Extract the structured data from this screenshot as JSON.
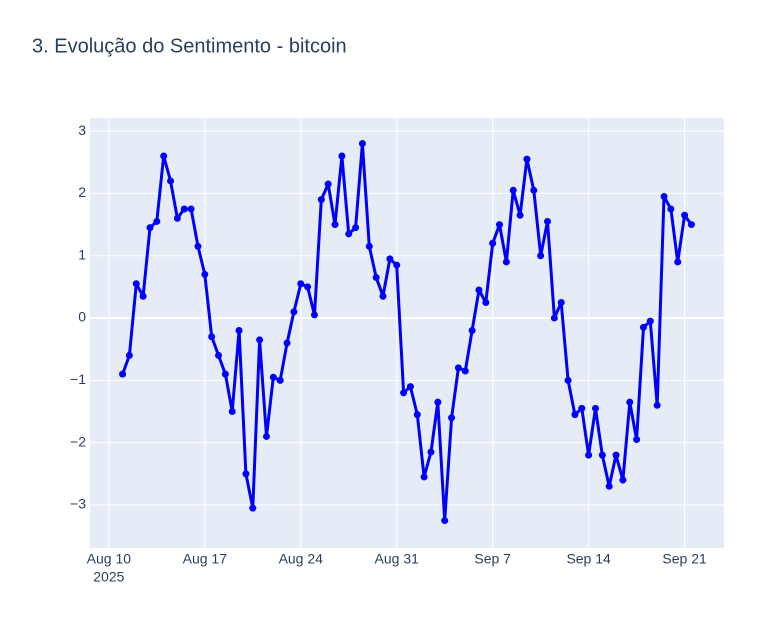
{
  "chart_data": {
    "type": "line",
    "title": "3. Evolução do Sentimento - bitcoin",
    "color": "#0000ff",
    "grid": true,
    "x": [
      "2025-08-11 00:00",
      "2025-08-11 12:00",
      "2025-08-12 00:00",
      "2025-08-12 12:00",
      "2025-08-13 00:00",
      "2025-08-13 12:00",
      "2025-08-14 00:00",
      "2025-08-14 12:00",
      "2025-08-15 00:00",
      "2025-08-15 12:00",
      "2025-08-16 00:00",
      "2025-08-16 12:00",
      "2025-08-17 00:00",
      "2025-08-17 12:00",
      "2025-08-18 00:00",
      "2025-08-18 12:00",
      "2025-08-19 00:00",
      "2025-08-19 12:00",
      "2025-08-20 00:00",
      "2025-08-20 12:00",
      "2025-08-21 00:00",
      "2025-08-21 12:00",
      "2025-08-22 00:00",
      "2025-08-22 12:00",
      "2025-08-23 00:00",
      "2025-08-23 12:00",
      "2025-08-24 00:00",
      "2025-08-24 12:00",
      "2025-08-25 00:00",
      "2025-08-25 12:00",
      "2025-08-26 00:00",
      "2025-08-26 12:00",
      "2025-08-27 00:00",
      "2025-08-27 12:00",
      "2025-08-28 00:00",
      "2025-08-28 12:00",
      "2025-08-29 00:00",
      "2025-08-29 12:00",
      "2025-08-30 00:00",
      "2025-08-30 12:00",
      "2025-08-31 00:00",
      "2025-08-31 12:00",
      "2025-09-01 00:00",
      "2025-09-01 12:00",
      "2025-09-02 00:00",
      "2025-09-02 12:00",
      "2025-09-03 00:00",
      "2025-09-03 12:00",
      "2025-09-04 00:00",
      "2025-09-04 12:00",
      "2025-09-05 00:00",
      "2025-09-05 12:00",
      "2025-09-06 00:00",
      "2025-09-06 12:00",
      "2025-09-07 00:00",
      "2025-09-07 12:00",
      "2025-09-08 00:00",
      "2025-09-08 12:00",
      "2025-09-09 00:00",
      "2025-09-09 12:00",
      "2025-09-10 00:00",
      "2025-09-10 12:00",
      "2025-09-11 00:00",
      "2025-09-11 12:00",
      "2025-09-12 00:00",
      "2025-09-12 12:00",
      "2025-09-13 00:00",
      "2025-09-13 12:00",
      "2025-09-14 00:00",
      "2025-09-14 12:00",
      "2025-09-15 00:00",
      "2025-09-15 12:00",
      "2025-09-16 00:00",
      "2025-09-16 12:00",
      "2025-09-17 00:00",
      "2025-09-17 12:00",
      "2025-09-18 00:00",
      "2025-09-18 12:00",
      "2025-09-19 00:00",
      "2025-09-19 12:00",
      "2025-09-20 00:00",
      "2025-09-20 12:00",
      "2025-09-21 00:00",
      "2025-09-21 12:00"
    ],
    "values": [
      -0.9,
      -0.6,
      0.55,
      0.35,
      1.45,
      1.55,
      2.6,
      2.2,
      1.6,
      1.75,
      1.75,
      1.15,
      0.7,
      -0.3,
      -0.6,
      -0.9,
      -1.5,
      -0.2,
      -2.5,
      -3.05,
      -0.35,
      -1.9,
      -0.95,
      -1.0,
      -0.4,
      0.1,
      0.55,
      0.5,
      0.05,
      1.9,
      2.15,
      1.5,
      2.6,
      1.35,
      1.45,
      2.8,
      1.15,
      0.65,
      0.35,
      0.95,
      0.85,
      -1.2,
      -1.1,
      -1.55,
      -2.55,
      -2.15,
      -1.35,
      -3.25,
      -1.6,
      -0.8,
      -0.85,
      -0.2,
      0.45,
      0.25,
      1.2,
      1.5,
      0.9,
      2.05,
      1.65,
      2.55,
      2.05,
      1.0,
      1.55,
      0.0,
      0.25,
      -1.0,
      -1.55,
      -1.45,
      -2.2,
      -1.45,
      -2.2,
      -2.7,
      -2.2,
      -2.6,
      -1.35,
      -1.95,
      -0.15,
      -0.05,
      -1.4,
      1.95,
      1.75,
      0.9,
      1.65,
      1.5
    ],
    "xlim": [
      "2025-08-08 15:00",
      "2025-09-23 21:00"
    ],
    "xticks": [
      {
        "value": "2025-08-10",
        "label": "Aug 10",
        "sublabel": "2025"
      },
      {
        "value": "2025-08-17",
        "label": "Aug 17"
      },
      {
        "value": "2025-08-24",
        "label": "Aug 24"
      },
      {
        "value": "2025-08-31",
        "label": "Aug 31"
      },
      {
        "value": "2025-09-07",
        "label": "Sep 7"
      },
      {
        "value": "2025-09-14",
        "label": "Sep 14"
      },
      {
        "value": "2025-09-21",
        "label": "Sep 21"
      }
    ],
    "ylim": [
      -3.69,
      3.21
    ],
    "yticks": [
      {
        "value": -3,
        "label": "−3"
      },
      {
        "value": -2,
        "label": "−2"
      },
      {
        "value": -1,
        "label": "−1"
      },
      0,
      1,
      2,
      3
    ]
  }
}
